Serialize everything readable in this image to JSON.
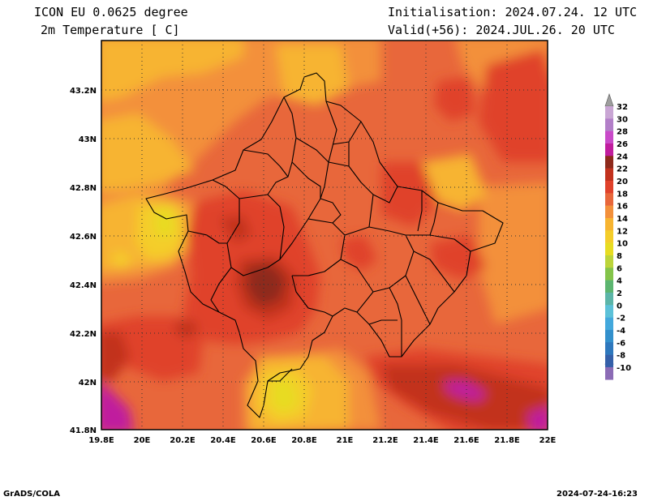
{
  "header": {
    "model": "ICON EU 0.0625 degree",
    "variable": "2m Temperature [ C]",
    "init": "Initialisation: 2024.07.24. 12 UTC",
    "valid": "Valid(+56): 2024.JUL.26. 20 UTC"
  },
  "axes": {
    "lat_labels": [
      "43.2N",
      "43N",
      "42.8N",
      "42.6N",
      "42.4N",
      "42.2N",
      "42N",
      "41.8N"
    ],
    "lon_labels": [
      "19.8E",
      "20E",
      "20.2E",
      "20.4E",
      "20.6E",
      "20.8E",
      "21E",
      "21.2E",
      "21.4E",
      "21.6E",
      "21.8E",
      "22E"
    ],
    "lat_range": [
      41.8,
      43.38
    ],
    "lon_range": [
      19.8,
      22.0
    ]
  },
  "colorbar": {
    "labels": [
      "32",
      "30",
      "28",
      "26",
      "24",
      "22",
      "20",
      "18",
      "16",
      "14",
      "12",
      "10",
      "8",
      "6",
      "4",
      "2",
      "0",
      "-2",
      "-4",
      "-6",
      "-8",
      "-10"
    ],
    "colors": [
      "#c9a6d4",
      "#b27fc8",
      "#c94ac9",
      "#c01d9e",
      "#8e2a1c",
      "#c2321e",
      "#e0422b",
      "#e8673b",
      "#f3903b",
      "#f7b431",
      "#f4cd2a",
      "#e7dc22",
      "#bcd43a",
      "#84c44a",
      "#5cb570",
      "#5cb5a8",
      "#5cc1d8",
      "#43a8dc",
      "#3390cc",
      "#2e78bd",
      "#3560a9",
      "#8b6bb5"
    ],
    "arrow_top_color": "#9e9e9e",
    "arrow_bottom_color": "#b594d6"
  },
  "footer": {
    "left": "GrADS/COLA",
    "right": "2024-07-24-16:23"
  }
}
